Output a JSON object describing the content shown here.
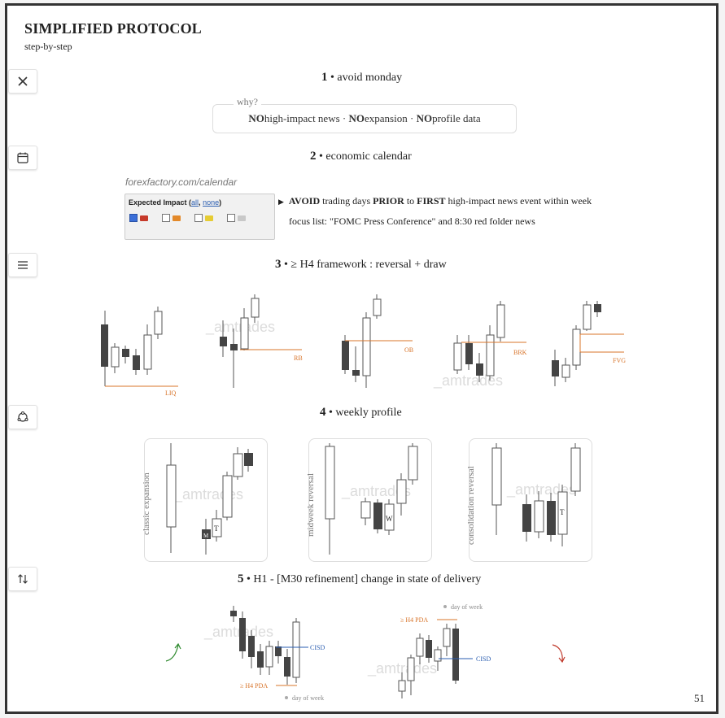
{
  "doc": {
    "title": "SIMPLIFIED PROTOCOL",
    "subtitle": "step-by-step",
    "page_number": "51"
  },
  "sidebar": [
    "close-icon",
    "calendar-icon",
    "menu-icon",
    "cycle-icon",
    "sort-arrows-icon"
  ],
  "step1": {
    "num": "1",
    "label": "avoid monday",
    "why_label": "why?",
    "reasons": [
      {
        "neg": "NO",
        "text": " high-impact news"
      },
      {
        "neg": "NO",
        "text": " expansion"
      },
      {
        "neg": "NO",
        "text": " profile data"
      }
    ],
    "separator": "·"
  },
  "step2": {
    "num": "2",
    "label": "economic calendar",
    "url": "forexfactory.com/calendar",
    "impact_title": "Expected Impact",
    "impact_all": "all",
    "impact_none": "none",
    "impact_colors": [
      "#c63a2a",
      "#e3892a",
      "#e6cc33",
      "#c8c8c8"
    ],
    "avoid": {
      "w1": "AVOID",
      "t1": " trading days ",
      "w2": "PRIOR",
      "t2": " to ",
      "w3": "FIRST",
      "t3": " high-impact news event within week"
    },
    "focus": "focus list: \"FOMC Press Conference\" and 8:30 red folder news"
  },
  "step3": {
    "num": "3",
    "label": "≥ H4 framework : reversal + draw",
    "tags": [
      "LIQ",
      "RB",
      "OB",
      "BRK",
      "FVG"
    ]
  },
  "step4": {
    "num": "4",
    "label": "weekly profile",
    "profiles": [
      "classic expansion",
      "midweek reversal",
      "consolidation reversal"
    ],
    "markers": [
      "M",
      "T",
      "W",
      "T"
    ]
  },
  "step5": {
    "num": "5",
    "label": "H1 - [M30 refinement] change in state of delivery",
    "cisd": "CISD",
    "pda": "≥ H4 PDA",
    "dow": "day of week"
  },
  "watermark": "_amtrades",
  "colors": {
    "accent": "#d8742a",
    "blue": "#2a5db0",
    "green": "#2f8a2f",
    "red": "#c0392b"
  }
}
